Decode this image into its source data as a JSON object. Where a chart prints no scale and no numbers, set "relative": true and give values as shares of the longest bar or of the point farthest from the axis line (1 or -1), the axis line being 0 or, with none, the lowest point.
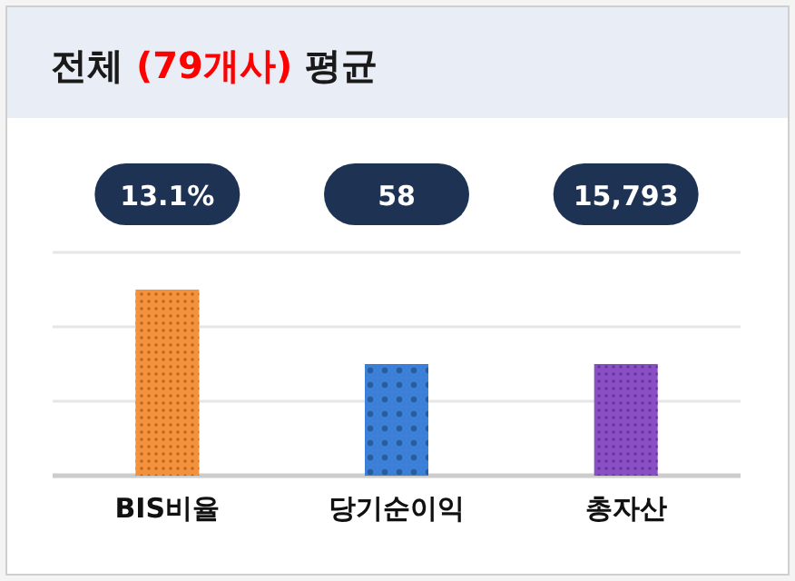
{
  "chart_data": {
    "type": "bar",
    "title": "전체 (79개사) 평균",
    "categories": [
      "BIS비율",
      "당기순이익",
      "총자산"
    ],
    "values": [
      1,
      0.6,
      0.6
    ],
    "relative": true,
    "annotations": [
      "13.1%",
      "58",
      "15,793"
    ],
    "colors": [
      "#f5913a",
      "#3b7fd6",
      "#8a4fc6"
    ],
    "ref_lines": [
      {
        "axis": "y",
        "value": 0.4,
        "color": "#e6e6e6"
      },
      {
        "axis": "y",
        "value": 0.8,
        "color": "#e6e6e6"
      },
      {
        "axis": "y",
        "value": 1.2,
        "color": "#e6e6e6"
      }
    ]
  }
}
